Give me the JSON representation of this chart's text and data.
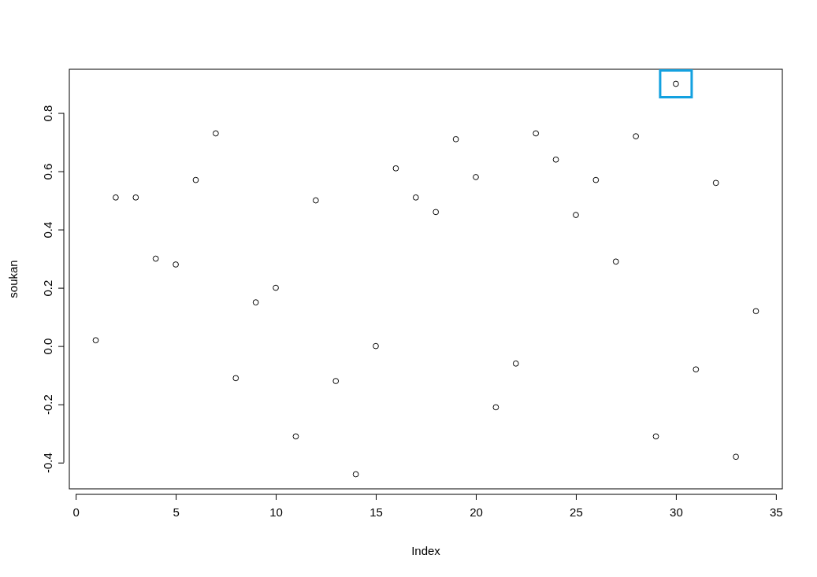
{
  "chart_data": {
    "type": "scatter",
    "xlabel": "Index",
    "ylabel": "soukan",
    "x": [
      1,
      2,
      3,
      4,
      5,
      6,
      7,
      8,
      9,
      10,
      11,
      12,
      13,
      14,
      15,
      16,
      17,
      18,
      19,
      20,
      21,
      22,
      23,
      24,
      25,
      26,
      27,
      28,
      29,
      30,
      31,
      32,
      33,
      34
    ],
    "series": [
      {
        "color": "#000000",
        "values": [
          0.02,
          0.51,
          0.51,
          0.3,
          0.28,
          0.57,
          0.73,
          -0.11,
          0.15,
          0.2,
          -0.31,
          0.5,
          -0.12,
          -0.44,
          0.0,
          0.61,
          0.51,
          0.46,
          0.71,
          0.58,
          -0.21,
          -0.06,
          0.73,
          0.64,
          0.45,
          0.57,
          0.29,
          0.72,
          -0.31,
          0.9,
          -0.08,
          0.56,
          -0.38,
          0.12
        ]
      }
    ],
    "xlim": [
      -0.32,
      35.32
    ],
    "ylim": [
      -0.49,
      0.95
    ],
    "xticks": [
      0,
      5,
      10,
      15,
      20,
      25,
      30,
      35
    ],
    "yticks": [
      {
        "value": -0.4,
        "label": "-0.4"
      },
      {
        "value": -0.2,
        "label": "-0.2"
      },
      {
        "value": 0,
        "label": "0.0"
      },
      {
        "value": 0.2,
        "label": "0.2"
      },
      {
        "value": 0.4,
        "label": "0.4"
      },
      {
        "value": 0.6,
        "label": "0.6"
      },
      {
        "value": 0.8,
        "label": "0.8"
      }
    ],
    "marker": "circle",
    "grid": false
  }
}
